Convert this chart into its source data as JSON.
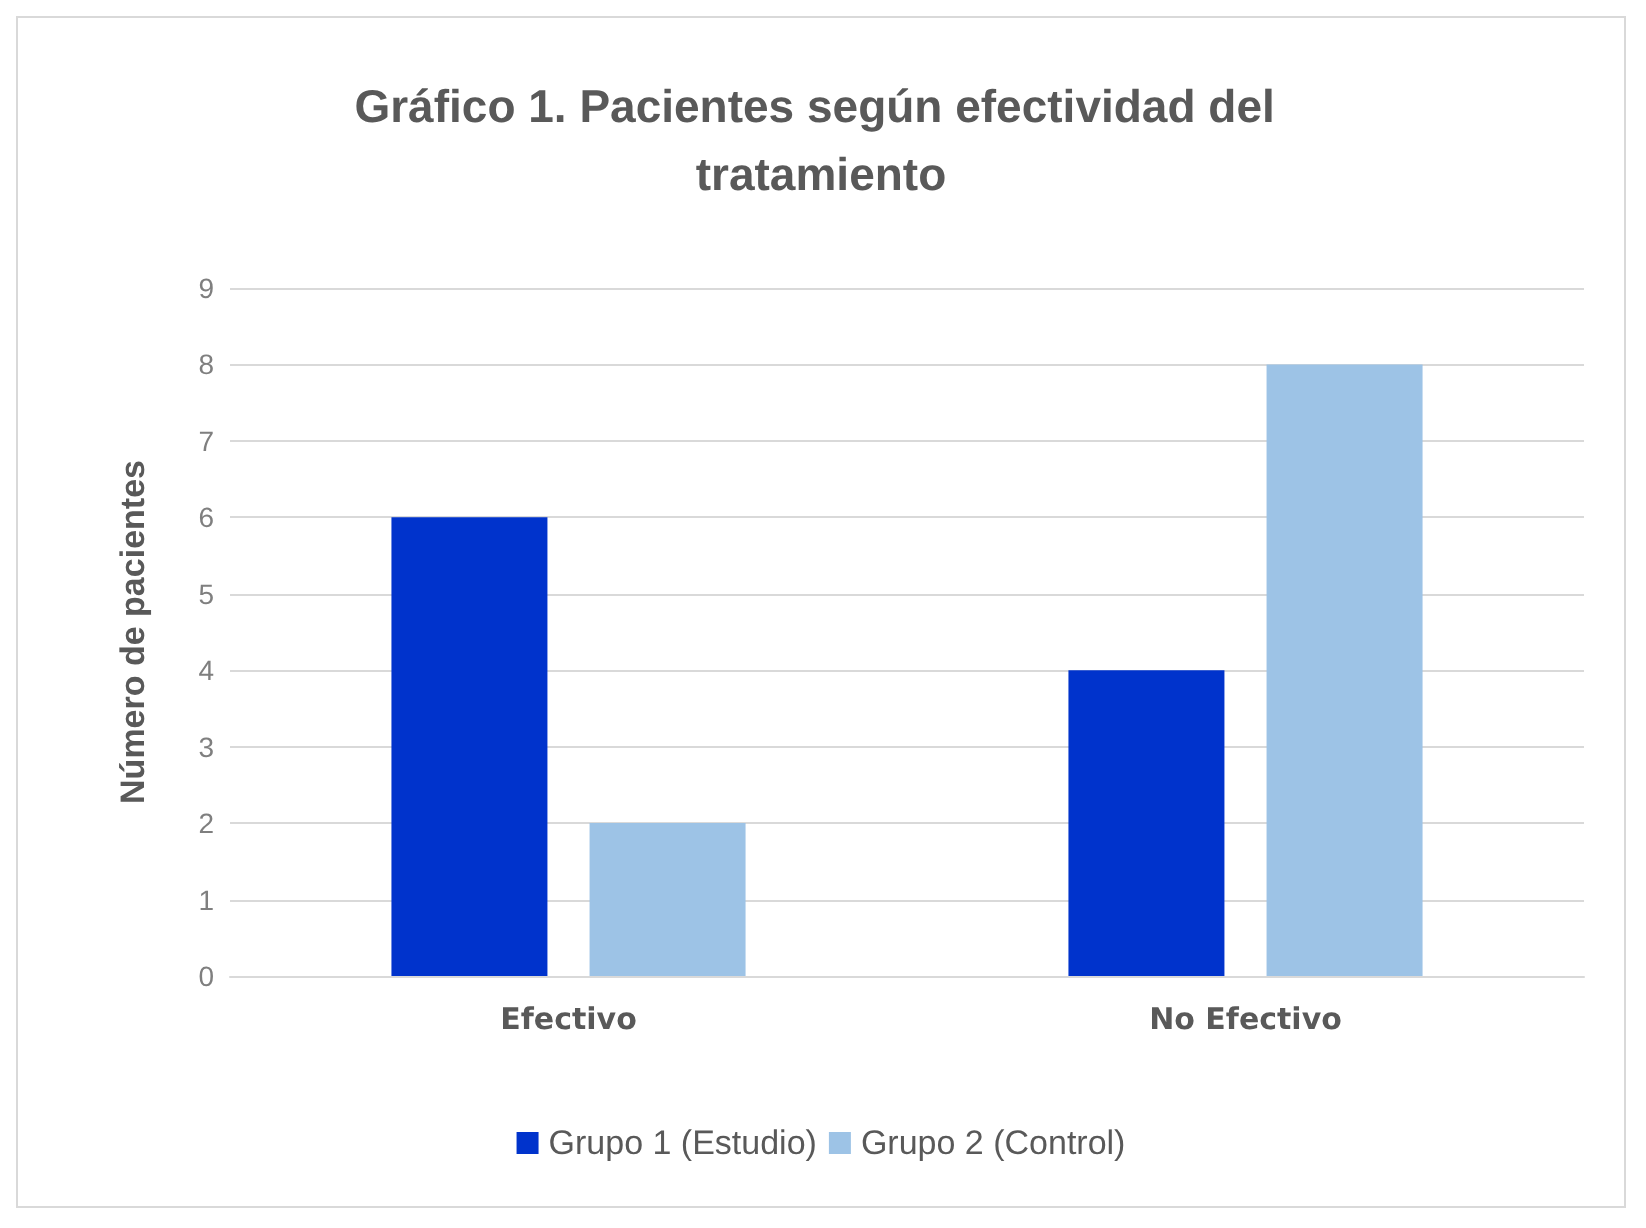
{
  "chart_data": {
    "type": "bar",
    "title": "Gráfico 1. Pacientes según efectividad del tratamiento",
    "ylabel": "Número de pacientes",
    "categories": [
      "Efectivo",
      "No Efectivo"
    ],
    "series": [
      {
        "name": "Grupo 1 (Estudio)",
        "color": "#0033cc",
        "values": [
          6,
          4
        ]
      },
      {
        "name": "Grupo 2 (Control)",
        "color": "#9dc3e6",
        "values": [
          2,
          8
        ]
      }
    ],
    "ylim": [
      0,
      9
    ],
    "yticks": [
      0,
      1,
      2,
      3,
      4,
      5,
      6,
      7,
      8,
      9
    ],
    "grid": "y",
    "legend": "bottom"
  }
}
